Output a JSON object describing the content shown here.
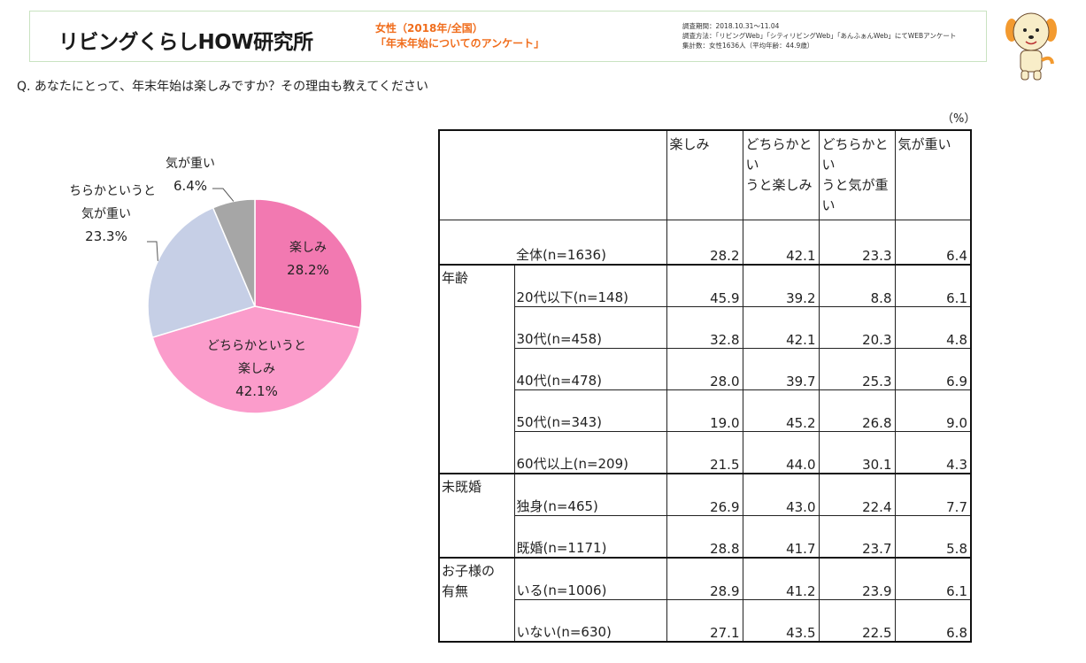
{
  "header": {
    "logo_text": "リビングくらしHOW研究所",
    "survey_line1": "女性（2018年/全国）",
    "survey_line2": "「年末年始についてのアンケート」",
    "meta_period": "調査期間：2018.10.31～11.04",
    "meta_method": "調査方法：「リビングWeb」「シティリビングWeb」「あんふぁんWeb」にてWEBアンケート",
    "meta_count": "集計数：女性1636人（平均年齢：44.9歳）"
  },
  "question": "Q.  あなたにとって、年末年始は楽しみですか？その理由も教えてください",
  "unit": "（%）",
  "chart_data": [
    {
      "type": "pie",
      "categories": [
        "楽しみ",
        "どちらかというと楽しみ",
        "どちらかというと気が重い",
        "気が重い"
      ],
      "values": [
        28.2,
        42.1,
        23.3,
        6.4
      ],
      "labels": [
        {
          "lines": [
            "楽しみ",
            "28.2%"
          ]
        },
        {
          "lines": [
            "どちらかというと",
            "楽しみ",
            "42.1%"
          ]
        },
        {
          "lines": [
            "どちらかというと",
            "気が重い",
            "23.3%"
          ]
        },
        {
          "lines": [
            "気が重い",
            "6.4%"
          ]
        }
      ],
      "colors": [
        "#f279b1",
        "#fb9ccb",
        "#c6cfe6",
        "#a6a6a6"
      ]
    },
    {
      "type": "table",
      "columns": [
        {
          "lines": [
            "楽しみ"
          ]
        },
        {
          "lines": [
            "どちらかとい",
            "うと楽しみ"
          ]
        },
        {
          "lines": [
            "どちらかとい",
            "うと気が重",
            "い"
          ]
        },
        {
          "lines": [
            "気が重い"
          ]
        }
      ],
      "groups": [
        {
          "category": [],
          "rows": [
            {
              "label": "全体(n=1636)",
              "values": [
                "28.2",
                "42.1",
                "23.3",
                "6.4"
              ]
            }
          ]
        },
        {
          "category": [
            "年齢"
          ],
          "rows": [
            {
              "label": "20代以下(n=148)",
              "values": [
                "45.9",
                "39.2",
                "8.8",
                "6.1"
              ]
            },
            {
              "label": "30代(n=458)",
              "values": [
                "32.8",
                "42.1",
                "20.3",
                "4.8"
              ]
            },
            {
              "label": "40代(n=478)",
              "values": [
                "28.0",
                "39.7",
                "25.3",
                "6.9"
              ]
            },
            {
              "label": "50代(n=343)",
              "values": [
                "19.0",
                "45.2",
                "26.8",
                "9.0"
              ]
            },
            {
              "label": "60代以上(n=209)",
              "values": [
                "21.5",
                "44.0",
                "30.1",
                "4.3"
              ]
            }
          ]
        },
        {
          "category": [
            "未既婚"
          ],
          "rows": [
            {
              "label": "独身(n=465)",
              "values": [
                "26.9",
                "43.0",
                "22.4",
                "7.7"
              ]
            },
            {
              "label": "既婚(n=1171)",
              "values": [
                "28.8",
                "41.7",
                "23.7",
                "5.8"
              ]
            }
          ]
        },
        {
          "category": [
            "お子様の",
            "有無"
          ],
          "rows": [
            {
              "label": "いる(n=1006)",
              "values": [
                "28.9",
                "41.2",
                "23.9",
                "6.1"
              ]
            },
            {
              "label": "いない(n=630)",
              "values": [
                "27.1",
                "43.5",
                "22.5",
                "6.8"
              ]
            }
          ]
        }
      ]
    }
  ]
}
